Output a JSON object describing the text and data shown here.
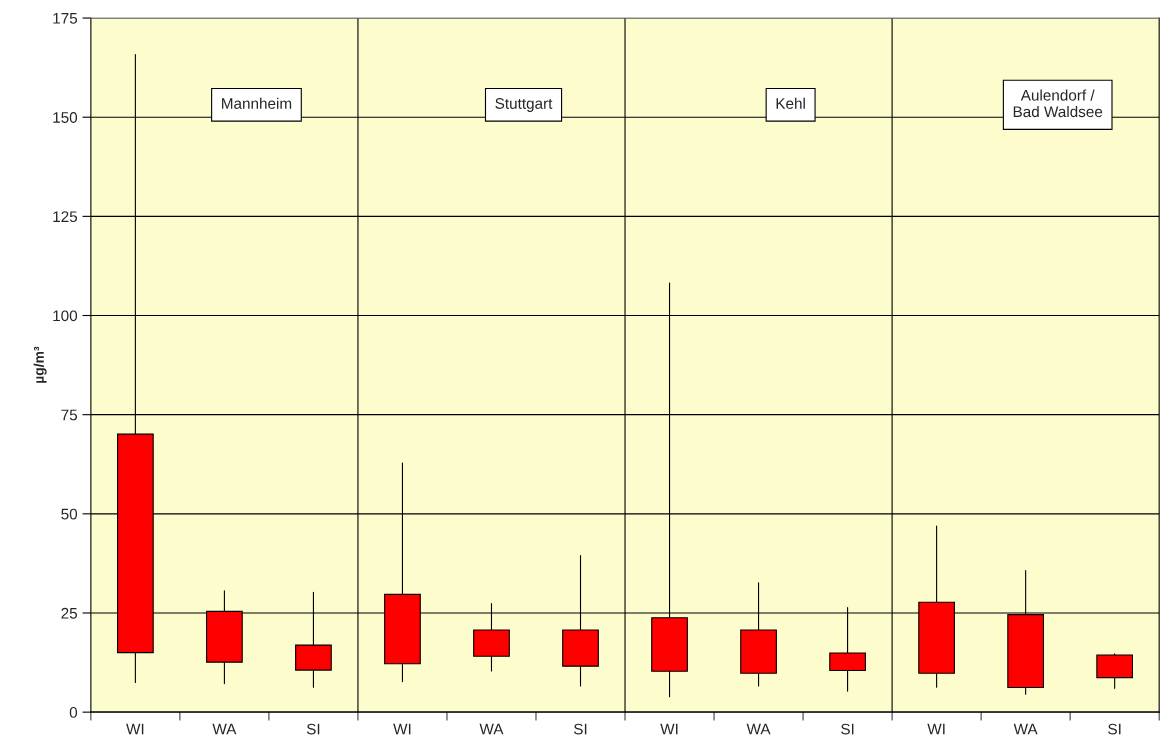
{
  "chart_data": {
    "type": "candlestick",
    "ylabel": "µg/m³",
    "color": "#ff0000",
    "ylim": [
      0,
      175
    ],
    "yticks": [
      0,
      25,
      50,
      75,
      100,
      125,
      150,
      175
    ],
    "grid": "y",
    "categories": [
      "WI",
      "WA",
      "SI",
      "WI",
      "WA",
      "SI",
      "WI",
      "WA",
      "SI",
      "WI",
      "WA",
      "SI"
    ],
    "annotations": [
      "Mannheim",
      "Stuttgart",
      "Kehl",
      "Aulendorf /\nBad Waldsee"
    ],
    "ohlc": [
      [
        70.1,
        165.8,
        7.5,
        15.0
      ],
      [
        25.4,
        30.6,
        7.2,
        12.6
      ],
      [
        16.9,
        30.2,
        6.3,
        10.6
      ],
      [
        29.7,
        62.8,
        7.7,
        12.2
      ],
      [
        20.7,
        27.4,
        10.4,
        14.1
      ],
      [
        20.7,
        39.5,
        6.6,
        11.6
      ],
      [
        23.8,
        108.2,
        3.9,
        10.3
      ],
      [
        20.7,
        32.6,
        6.6,
        9.8
      ],
      [
        14.9,
        26.4,
        5.3,
        10.5
      ],
      [
        27.7,
        46.9,
        6.3,
        9.8
      ],
      [
        24.6,
        35.7,
        4.5,
        6.2
      ],
      [
        14.4,
        14.7,
        6.0,
        8.7
      ]
    ]
  }
}
